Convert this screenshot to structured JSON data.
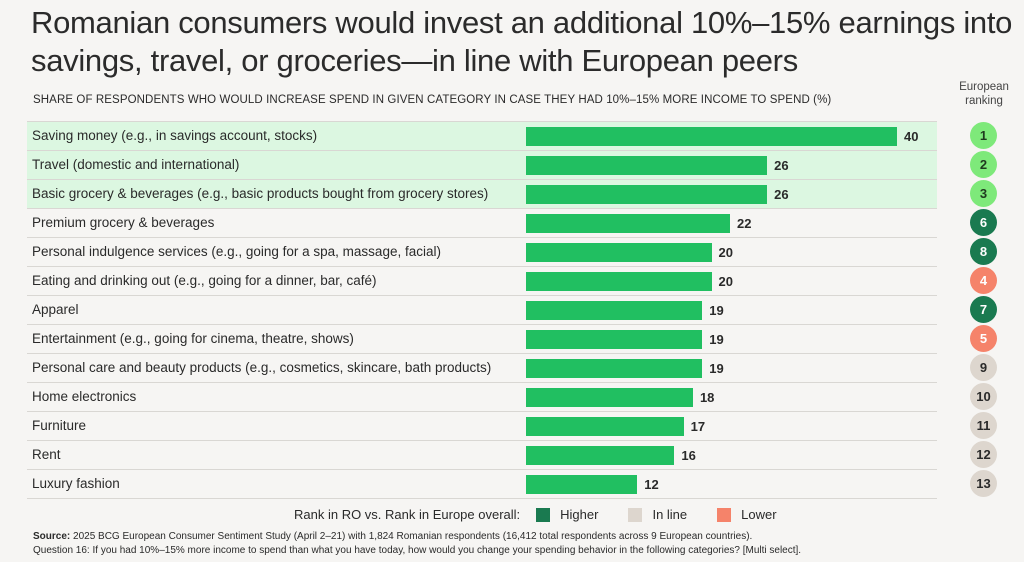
{
  "title": "Romanian consumers would invest an additional 10%–15% earnings into savings, travel, or groceries—in line with European peers",
  "subtitle": "SHARE OF RESPONDENTS WHO WOULD INCREASE SPEND IN GIVEN CATEGORY IN CASE THEY HAD 10%–15% MORE INCOME TO SPEND (%)",
  "ranking_header": "European ranking",
  "colors": {
    "bar": "#21bf61",
    "highlight_row": "#dcf7e1",
    "top_rank": "#7ee97a",
    "higher": "#1a7a50",
    "in_line": "#ddd6ce",
    "lower": "#f5836a"
  },
  "legend": {
    "label": "Rank in RO vs. Rank in Europe overall:",
    "items": [
      {
        "label": "Higher",
        "color": "#1a7a50"
      },
      {
        "label": "In line",
        "color": "#ddd6ce"
      },
      {
        "label": "Lower",
        "color": "#f5836a"
      }
    ]
  },
  "footer": {
    "source_label": "Source:",
    "source_text": "2025 BCG European Consumer Sentiment Study (April 2–21) with 1,824 Romanian respondents (16,412 total respondents across 9 European countries).",
    "question": "Question 16: If you had 10%–15% more income to spend than what you have today, how would you change your spending behavior in the following categories? [Multi select]."
  },
  "chart_data": {
    "type": "bar",
    "orientation": "horizontal",
    "title": "Romanian consumers would invest an additional 10%–15% earnings into savings, travel, or groceries—in line with European peers",
    "xlabel": "Share of respondents (%)",
    "ylabel": "",
    "xlim": [
      0,
      40
    ],
    "grid": false,
    "legend_position": "bottom",
    "categories": [
      "Saving money (e.g., in savings account, stocks)",
      "Travel (domestic and international)",
      "Basic grocery & beverages (e.g., basic products bought from grocery stores)",
      "Premium grocery & beverages",
      "Personal indulgence services (e.g., going for a spa, massage, facial)",
      "Eating and drinking out (e.g., going for a dinner, bar, café)",
      "Apparel",
      "Entertainment (e.g., going for cinema, theatre, shows)",
      "Personal care and beauty products (e.g., cosmetics, skincare, bath products)",
      "Home electronics",
      "Furniture",
      "Rent",
      "Luxury fashion"
    ],
    "values": [
      40,
      26,
      26,
      22,
      20,
      20,
      19,
      19,
      19,
      18,
      17,
      16,
      12
    ],
    "highlighted": [
      true,
      true,
      true,
      false,
      false,
      false,
      false,
      false,
      false,
      false,
      false,
      false,
      false
    ],
    "european_ranking": [
      1,
      2,
      3,
      6,
      8,
      4,
      7,
      5,
      9,
      10,
      11,
      12,
      13
    ],
    "rank_comparison": [
      "top",
      "top",
      "top",
      "higher",
      "higher",
      "lower",
      "higher",
      "lower",
      "in_line",
      "in_line",
      "in_line",
      "in_line",
      "in_line"
    ]
  }
}
